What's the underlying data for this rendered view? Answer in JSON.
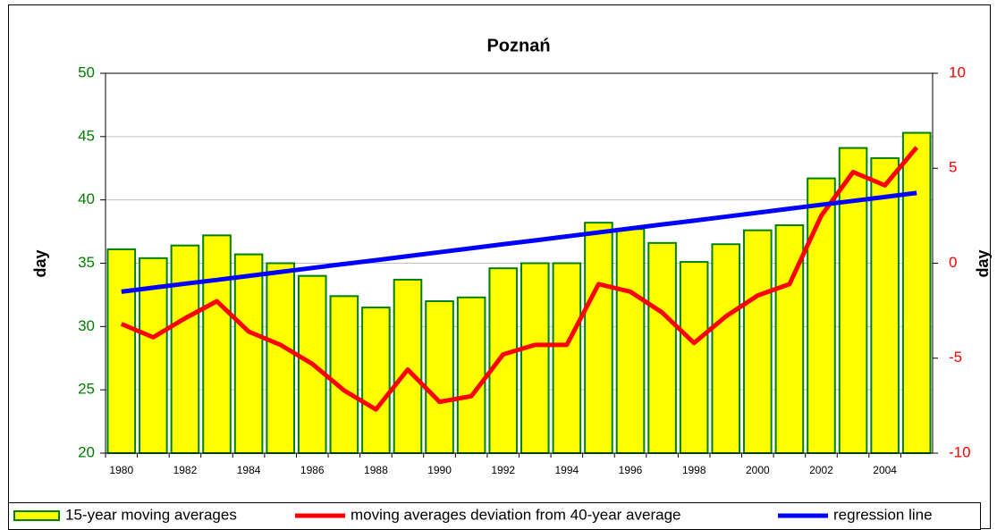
{
  "chart_data": {
    "type": "bar",
    "title": "Poznań",
    "categories": [
      "1980",
      null,
      "1982",
      null,
      "1984",
      null,
      "1986",
      null,
      "1988",
      null,
      "1990",
      null,
      "1992",
      null,
      "1994",
      null,
      "1996",
      null,
      "1998",
      null,
      "2000",
      null,
      "2002",
      null,
      "2004",
      null
    ],
    "y_label": "day",
    "y2_label": "day",
    "ylim": [
      20,
      50
    ],
    "yticks": [
      20,
      25,
      30,
      35,
      40,
      45,
      50
    ],
    "ytick_color": "#008000",
    "y2lim": [
      -10,
      10
    ],
    "y2ticks": [
      -10,
      -5,
      0,
      5,
      10
    ],
    "y2tick_color": "#ff0000",
    "grid": true,
    "series": [
      {
        "name": "15-year moving averages",
        "type": "bar",
        "color": "#ffff00",
        "edge_color": "#008000",
        "values": [
          36.1,
          35.4,
          36.4,
          37.2,
          35.7,
          35.0,
          34.0,
          32.4,
          31.5,
          33.7,
          32.0,
          32.3,
          34.6,
          35.0,
          35.0,
          38.2,
          37.7,
          36.6,
          35.1,
          36.5,
          37.6,
          38.0,
          41.7,
          44.1,
          43.3,
          45.3
        ]
      },
      {
        "name": "moving averages deviation from 40-year average",
        "type": "line",
        "axis": "y2",
        "color": "#ff0000",
        "values": [
          -3.2,
          -3.9,
          -2.9,
          -2.0,
          -3.6,
          -4.3,
          -5.3,
          -6.7,
          -7.7,
          -5.6,
          -7.3,
          -7.0,
          -4.8,
          -4.3,
          -4.3,
          -1.1,
          -1.5,
          -2.6,
          -4.2,
          -2.8,
          -1.7,
          -1.1,
          2.5,
          4.8,
          4.1,
          6.1
        ]
      },
      {
        "name": "regression line",
        "type": "line",
        "axis": "y2",
        "color": "#0000ff",
        "values": [
          -1.5,
          -1.29,
          -1.08,
          -0.88,
          -0.67,
          -0.46,
          -0.25,
          -0.04,
          0.16,
          0.37,
          0.58,
          0.79,
          1.0,
          1.2,
          1.41,
          1.62,
          1.83,
          2.04,
          2.24,
          2.45,
          2.66,
          2.87,
          3.08,
          3.28,
          3.49,
          3.7
        ]
      }
    ]
  }
}
